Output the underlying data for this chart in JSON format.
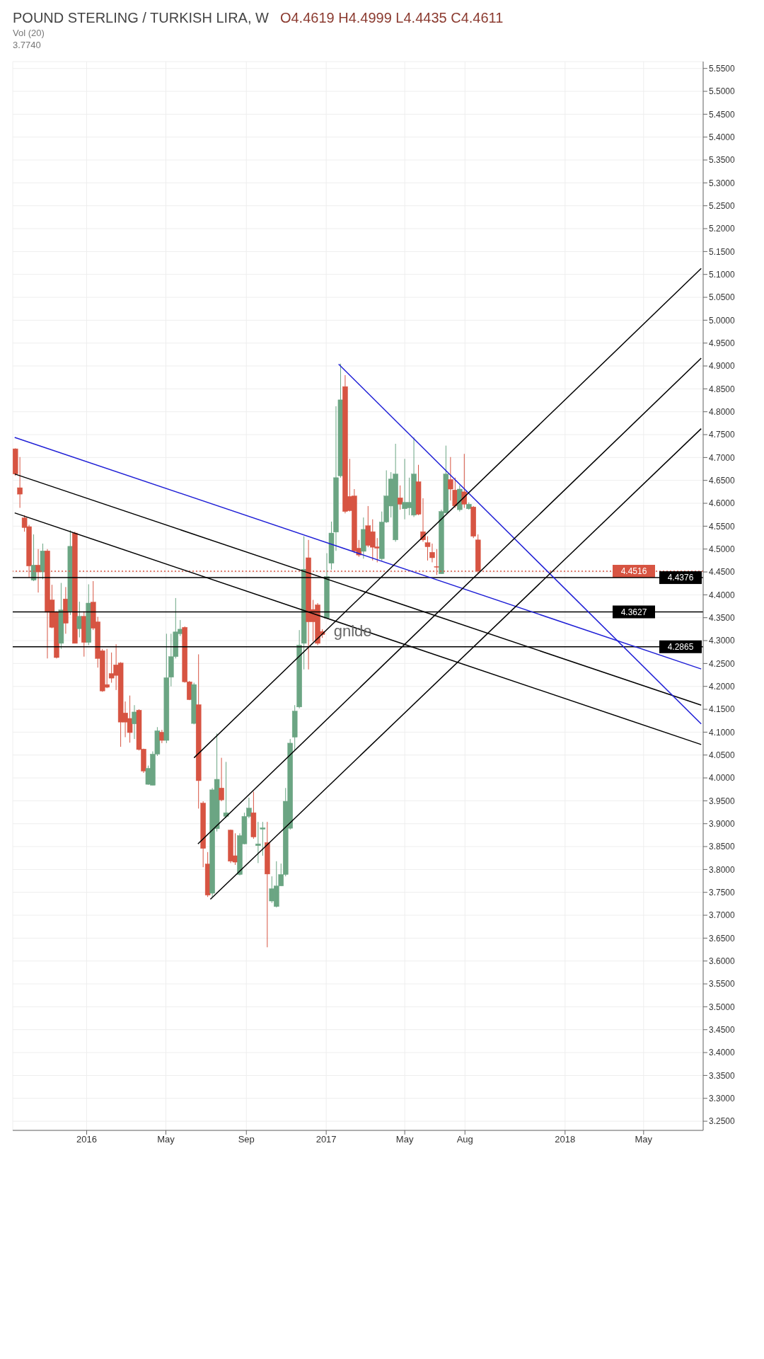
{
  "chart_data": {
    "type": "candlestick",
    "title": "POUND STERLING / TURKISH LIRA, W",
    "subtitle": "O4.4619 H4.4999 L4.4435 C4.4611",
    "x": [
      "2015-09-14",
      "2015-09-21",
      "2015-09-28",
      "2015-10-05",
      "2015-10-12",
      "2015-10-19",
      "2015-10-26",
      "2015-11-02",
      "2015-11-09",
      "2015-11-16",
      "2015-11-23",
      "2015-11-30",
      "2015-12-07",
      "2015-12-14",
      "2015-12-21",
      "2015-12-28",
      "2016-01-04",
      "2016-01-11",
      "2016-01-18",
      "2016-01-25",
      "2016-02-01",
      "2016-02-08",
      "2016-02-15",
      "2016-02-22",
      "2016-02-29",
      "2016-03-07",
      "2016-03-14",
      "2016-03-21",
      "2016-03-28",
      "2016-04-04",
      "2016-04-11",
      "2016-04-18",
      "2016-04-25",
      "2016-05-02",
      "2016-05-09",
      "2016-05-16",
      "2016-05-23",
      "2016-05-30",
      "2016-06-06",
      "2016-06-13",
      "2016-06-20",
      "2016-06-27",
      "2016-07-04",
      "2016-07-11",
      "2016-07-18",
      "2016-07-25",
      "2016-08-01",
      "2016-08-08",
      "2016-08-15",
      "2016-08-22",
      "2016-08-29",
      "2016-09-05",
      "2016-09-12",
      "2016-09-19",
      "2016-09-26",
      "2016-10-03",
      "2016-10-10",
      "2016-10-17",
      "2016-10-24",
      "2016-10-31",
      "2016-11-07",
      "2016-11-14",
      "2016-11-21",
      "2016-11-28",
      "2016-12-05",
      "2016-12-12",
      "2016-12-19",
      "2016-12-26",
      "2017-01-02",
      "2017-01-09",
      "2017-01-16",
      "2017-01-23",
      "2017-01-30",
      "2017-02-06",
      "2017-02-13",
      "2017-02-20",
      "2017-02-27",
      "2017-03-06",
      "2017-03-13",
      "2017-03-20",
      "2017-03-27",
      "2017-04-03",
      "2017-04-10",
      "2017-04-17",
      "2017-04-24",
      "2017-05-01",
      "2017-05-08",
      "2017-05-15",
      "2017-05-22",
      "2017-05-29",
      "2017-06-05",
      "2017-06-12",
      "2017-06-19",
      "2017-06-26",
      "2017-07-03",
      "2017-07-10",
      "2017-07-17",
      "2017-07-24",
      "2017-07-31",
      "2017-08-07",
      "2017-08-14",
      "2017-08-21"
    ],
    "ohlc": [
      [
        4.719,
        4.72,
        4.66,
        4.664
      ],
      [
        4.634,
        4.701,
        4.59,
        4.62
      ],
      [
        4.568,
        4.574,
        4.538,
        4.547
      ],
      [
        4.549,
        4.553,
        4.438,
        4.463
      ],
      [
        4.432,
        4.532,
        4.43,
        4.465
      ],
      [
        4.465,
        4.5,
        4.405,
        4.45
      ],
      [
        4.45,
        4.512,
        4.434,
        4.496
      ],
      [
        4.496,
        4.5,
        4.261,
        4.362
      ],
      [
        4.389,
        4.422,
        4.327,
        4.329
      ],
      [
        4.362,
        4.364,
        4.261,
        4.263
      ],
      [
        4.294,
        4.426,
        4.282,
        4.367
      ],
      [
        4.391,
        4.417,
        4.315,
        4.338
      ],
      [
        4.364,
        4.541,
        4.356,
        4.506
      ],
      [
        4.535,
        4.538,
        4.294,
        4.294
      ],
      [
        4.326,
        4.385,
        4.307,
        4.353
      ],
      [
        4.353,
        4.364,
        4.265,
        4.296
      ],
      [
        4.296,
        4.423,
        4.29,
        4.382
      ],
      [
        4.384,
        4.43,
        4.323,
        4.327
      ],
      [
        4.341,
        4.352,
        4.241,
        4.261
      ],
      [
        4.278,
        4.282,
        4.188,
        4.19
      ],
      [
        4.204,
        4.282,
        4.196,
        4.198
      ],
      [
        4.228,
        4.274,
        4.208,
        4.218
      ],
      [
        4.247,
        4.292,
        4.192,
        4.224
      ],
      [
        4.251,
        4.253,
        4.068,
        4.122
      ],
      [
        4.142,
        4.167,
        4.089,
        4.122
      ],
      [
        4.13,
        4.18,
        4.077,
        4.099
      ],
      [
        4.118,
        4.159,
        4.085,
        4.144
      ],
      [
        4.148,
        4.15,
        4.06,
        4.062
      ],
      [
        4.063,
        4.064,
        4.011,
        4.015
      ],
      [
        3.986,
        4.027,
        3.985,
        4.021
      ],
      [
        3.984,
        4.058,
        3.984,
        4.052
      ],
      [
        4.052,
        4.111,
        4.048,
        4.103
      ],
      [
        4.1,
        4.105,
        4.076,
        4.082
      ],
      [
        4.082,
        4.315,
        4.076,
        4.219
      ],
      [
        4.22,
        4.315,
        4.2,
        4.265
      ],
      [
        4.265,
        4.393,
        4.261,
        4.319
      ],
      [
        4.315,
        4.345,
        4.31,
        4.325
      ],
      [
        4.329,
        4.331,
        4.208,
        4.21
      ],
      [
        4.21,
        4.212,
        4.17,
        4.171
      ],
      [
        4.119,
        4.208,
        4.117,
        4.204
      ],
      [
        4.16,
        4.27,
        3.933,
        3.994
      ],
      [
        3.945,
        3.949,
        3.805,
        3.846
      ],
      [
        3.812,
        3.838,
        3.74,
        3.744
      ],
      [
        3.748,
        3.978,
        3.74,
        3.974
      ],
      [
        3.889,
        4.097,
        3.883,
        3.997
      ],
      [
        3.978,
        4.044,
        3.949,
        3.952
      ],
      [
        3.916,
        4.035,
        3.912,
        3.924
      ],
      [
        3.886,
        3.887,
        3.814,
        3.818
      ],
      [
        3.83,
        3.879,
        3.81,
        3.816
      ],
      [
        3.789,
        3.879,
        3.787,
        3.874
      ],
      [
        3.856,
        3.924,
        3.855,
        3.916
      ],
      [
        3.916,
        3.957,
        3.912,
        3.934
      ],
      [
        3.924,
        3.97,
        3.867,
        3.871
      ],
      [
        3.852,
        3.904,
        3.814,
        3.856
      ],
      [
        3.888,
        3.904,
        3.83,
        3.891
      ],
      [
        3.859,
        3.904,
        3.63,
        3.79
      ],
      [
        3.731,
        3.785,
        3.727,
        3.758
      ],
      [
        3.719,
        3.818,
        3.717,
        3.764
      ],
      [
        3.764,
        3.813,
        3.764,
        3.789
      ],
      [
        3.789,
        3.978,
        3.785,
        3.949
      ],
      [
        3.89,
        4.085,
        3.887,
        4.076
      ],
      [
        4.089,
        4.159,
        4.06,
        4.146
      ],
      [
        4.155,
        4.323,
        4.152,
        4.29
      ],
      [
        4.294,
        4.528,
        4.237,
        4.456
      ],
      [
        4.481,
        4.52,
        4.237,
        4.341
      ],
      [
        4.368,
        4.389,
        4.298,
        4.341
      ],
      [
        4.378,
        4.382,
        4.29,
        4.294
      ],
      [
        4.32,
        4.325,
        4.306,
        4.313
      ],
      [
        4.349,
        4.491,
        4.348,
        4.44
      ],
      [
        4.469,
        4.56,
        4.455,
        4.535
      ],
      [
        4.537,
        4.812,
        4.496,
        4.656
      ],
      [
        4.66,
        4.905,
        4.656,
        4.826
      ],
      [
        4.855,
        4.88,
        4.578,
        4.582
      ],
      [
        4.615,
        4.697,
        4.582,
        4.584
      ],
      [
        4.616,
        4.631,
        4.491,
        4.496
      ],
      [
        4.502,
        4.52,
        4.483,
        4.487
      ],
      [
        4.495,
        4.569,
        4.479,
        4.543
      ],
      [
        4.551,
        4.594,
        4.504,
        4.508
      ],
      [
        4.538,
        4.565,
        4.475,
        4.504
      ],
      [
        4.505,
        4.524,
        4.471,
        4.502
      ],
      [
        4.479,
        4.582,
        4.475,
        4.559
      ],
      [
        4.559,
        4.672,
        4.557,
        4.616
      ],
      [
        4.594,
        4.668,
        4.569,
        4.653
      ],
      [
        4.52,
        4.73,
        4.516,
        4.664
      ],
      [
        4.612,
        4.639,
        4.586,
        4.598
      ],
      [
        4.588,
        4.697,
        4.565,
        4.602
      ],
      [
        4.59,
        4.656,
        4.574,
        4.602
      ],
      [
        4.574,
        4.744,
        4.57,
        4.664
      ],
      [
        4.647,
        4.684,
        4.574,
        4.576
      ],
      [
        4.538,
        4.611,
        4.516,
        4.52
      ],
      [
        4.514,
        4.528,
        4.475,
        4.505
      ],
      [
        4.493,
        4.512,
        4.471,
        4.481
      ],
      [
        4.4619,
        4.4999,
        4.4435,
        4.4611
      ],
      [
        4.446,
        4.586,
        4.446,
        4.582
      ],
      [
        4.579,
        4.726,
        4.578,
        4.664
      ],
      [
        4.652,
        4.701,
        4.606,
        4.631
      ],
      [
        4.629,
        4.656,
        4.59,
        4.594
      ],
      [
        4.586,
        4.639,
        4.582,
        4.631
      ],
      [
        4.625,
        4.708,
        4.59,
        4.598
      ],
      [
        4.588,
        4.602,
        4.586,
        4.598
      ],
      [
        4.592,
        4.594,
        4.524,
        4.528
      ],
      [
        4.52,
        4.532,
        4.446,
        4.4516
      ]
    ],
    "series": [
      {
        "type": "line",
        "color": "#1f1fd6",
        "x": [
          "2015-09-13",
          "2018-07-28"
        ],
        "values": [
          4.744,
          4.238
        ]
      },
      {
        "type": "line",
        "color": "#000000",
        "x": [
          "2015-09-13",
          "2018-07-28"
        ],
        "values": [
          4.664,
          4.159
        ]
      },
      {
        "type": "line",
        "color": "#000000",
        "x": [
          "2015-09-13",
          "2018-07-28"
        ],
        "values": [
          4.579,
          4.073
        ]
      },
      {
        "type": "line",
        "color": "#1f1fd6",
        "x": [
          "2017-01-20",
          "2018-07-28"
        ],
        "values": [
          4.904,
          4.118
        ]
      },
      {
        "type": "line",
        "color": "#000000",
        "x": [
          "2016-06-13",
          "2018-07-28"
        ],
        "values": [
          4.044,
          5.113
        ]
      },
      {
        "type": "line",
        "color": "#000000",
        "x": [
          "2016-06-19",
          "2018-07-28"
        ],
        "values": [
          3.856,
          4.917
        ]
      },
      {
        "type": "line",
        "color": "#000000",
        "x": [
          "2016-07-08",
          "2018-07-28"
        ],
        "values": [
          3.735,
          4.763
        ]
      }
    ],
    "xlim": [
      "2015-09-10",
      "2018-07-31"
    ],
    "xticks": [
      {
        "value": "2016-01-01",
        "label": "2016"
      },
      {
        "value": "2016-05-01",
        "label": "May"
      },
      {
        "value": "2016-09-01",
        "label": "Sep"
      },
      {
        "value": "2017-01-01",
        "label": "2017"
      },
      {
        "value": "2017-05-01",
        "label": "May"
      },
      {
        "value": "2017-08-01",
        "label": "Aug"
      },
      {
        "value": "2018-01-01",
        "label": "2018"
      },
      {
        "value": "2018-05-01",
        "label": "May"
      }
    ],
    "ylim": [
      3.23,
      5.565
    ],
    "yticks": [
      {
        "value": 3.25,
        "label": "3.2500"
      },
      {
        "value": 3.3,
        "label": "3.3000"
      },
      {
        "value": 3.35,
        "label": "3.3500"
      },
      {
        "value": 3.4,
        "label": "3.4000"
      },
      {
        "value": 3.45,
        "label": "3.4500"
      },
      {
        "value": 3.5,
        "label": "3.5000"
      },
      {
        "value": 3.55,
        "label": "3.5500"
      },
      {
        "value": 3.6,
        "label": "3.6000"
      },
      {
        "value": 3.65,
        "label": "3.6500"
      },
      {
        "value": 3.7,
        "label": "3.7000"
      },
      {
        "value": 3.75,
        "label": "3.7500"
      },
      {
        "value": 3.8,
        "label": "3.8000"
      },
      {
        "value": 3.85,
        "label": "3.8500"
      },
      {
        "value": 3.9,
        "label": "3.9000"
      },
      {
        "value": 3.95,
        "label": "3.9500"
      },
      {
        "value": 4.0,
        "label": "4.0000"
      },
      {
        "value": 4.05,
        "label": "4.0500"
      },
      {
        "value": 4.1,
        "label": "4.1000"
      },
      {
        "value": 4.15,
        "label": "4.1500"
      },
      {
        "value": 4.2,
        "label": "4.2000"
      },
      {
        "value": 4.25,
        "label": "4.2500"
      },
      {
        "value": 4.3,
        "label": "4.3000"
      },
      {
        "value": 4.35,
        "label": "4.3500"
      },
      {
        "value": 4.4,
        "label": "4.4000"
      },
      {
        "value": 4.45,
        "label": "4.4500"
      },
      {
        "value": 4.5,
        "label": "4.5000"
      },
      {
        "value": 4.55,
        "label": "4.5500"
      },
      {
        "value": 4.6,
        "label": "4.6000"
      },
      {
        "value": 4.65,
        "label": "4.6500"
      },
      {
        "value": 4.7,
        "label": "4.7000"
      },
      {
        "value": 4.75,
        "label": "4.7500"
      },
      {
        "value": 4.8,
        "label": "4.8000"
      },
      {
        "value": 4.85,
        "label": "4.8500"
      },
      {
        "value": 4.9,
        "label": "4.9000"
      },
      {
        "value": 4.95,
        "label": "4.9500"
      },
      {
        "value": 5.0,
        "label": "5.0000"
      },
      {
        "value": 5.05,
        "label": "5.0500"
      },
      {
        "value": 5.1,
        "label": "5.1000"
      },
      {
        "value": 5.15,
        "label": "5.1500"
      },
      {
        "value": 5.2,
        "label": "5.2000"
      },
      {
        "value": 5.25,
        "label": "5.2500"
      },
      {
        "value": 5.3,
        "label": "5.3000"
      },
      {
        "value": 5.35,
        "label": "5.3500"
      },
      {
        "value": 5.4,
        "label": "5.4000"
      },
      {
        "value": 5.45,
        "label": "5.4500"
      },
      {
        "value": 5.5,
        "label": "5.5000"
      },
      {
        "value": 5.55,
        "label": "5.5500"
      }
    ],
    "ref_lines": [
      {
        "axis": "y",
        "value": 4.4516,
        "label": "4.4516",
        "color": "#d75442",
        "line_style": "dotted"
      },
      {
        "axis": "y",
        "value": 4.4376,
        "label": "4.4376",
        "color": "#000000",
        "line_style": "solid"
      },
      {
        "axis": "y",
        "value": 4.3627,
        "label": "4.3627",
        "color": "#000000",
        "line_style": "solid"
      },
      {
        "axis": "y",
        "value": 4.2865,
        "label": "4.2865",
        "color": "#000000",
        "line_style": "solid"
      }
    ],
    "annotations": [
      "Vol (20)",
      "3.7740",
      {
        "text": "gnlde",
        "x": "2017-01-07",
        "y": 4.322
      }
    ],
    "grid": true,
    "marker": "none",
    "line_style": "solid"
  }
}
